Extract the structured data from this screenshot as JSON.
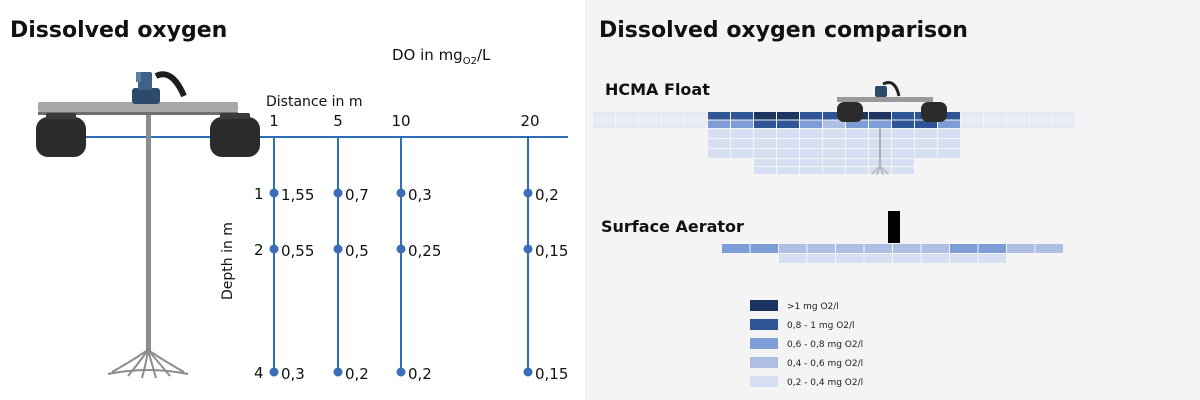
{
  "left": {
    "title": "Dissolved oxygen",
    "do_label": "DO in mg",
    "do_sub": "O2",
    "do_suffix": "/L",
    "distance_label": "Distance in m",
    "depth_label": "Depth in m",
    "distances": [
      "1",
      "5",
      "10",
      "20"
    ],
    "depths": [
      "1",
      "2",
      "4"
    ],
    "values": [
      [
        "1,55",
        "0,7",
        "0,3",
        "0,2"
      ],
      [
        "0,55",
        "0,5",
        "0,25",
        "0,15"
      ],
      [
        "0,3",
        "0,2",
        "0,2",
        "0,15"
      ]
    ]
  },
  "right": {
    "title": "Dissolved oxygen comparison",
    "hcma_label": "HCMA Float",
    "surface_label": "Surface Aerator",
    "legend": [
      {
        "label": ">1 mg O2/l",
        "color": "#1c3560"
      },
      {
        "label": "0,8 - 1 mg O2/l",
        "color": "#2f5597"
      },
      {
        "label": "0,6 - 0,8 mg O2/l",
        "color": "#7e9dd6"
      },
      {
        "label": "0,4 - 0,6 mg O2/l",
        "color": "#aebfe3"
      },
      {
        "label": "0,2 - 0,4 mg O2/l",
        "color": "#d6def1"
      }
    ]
  },
  "colors": {
    "line": "#2f6db5",
    "dot": "#3a6fb7",
    "float_body": "#2b2b2b",
    "frame": "#9a9a9a"
  }
}
